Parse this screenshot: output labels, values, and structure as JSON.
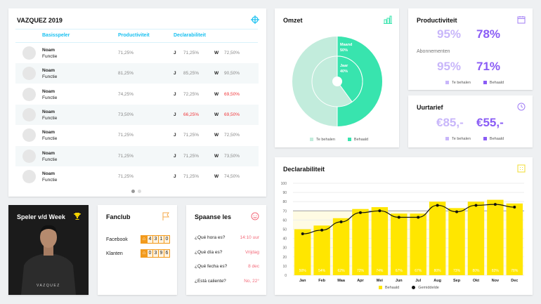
{
  "players": {
    "title": "VAZQUEZ 2019",
    "icon": "crosshair-icon",
    "headers": [
      "Basisspeler",
      "Productiviteit",
      "Declarabiliteit"
    ],
    "rows": [
      {
        "name": "Noam",
        "role": "Functie",
        "prod": "71,25%",
        "j_label": "J",
        "j": "71,25%",
        "j_red": false,
        "w_label": "W",
        "w": "72,50%",
        "w_red": false
      },
      {
        "name": "Noam",
        "role": "Functie",
        "prod": "81,25%",
        "j_label": "J",
        "j": "85,25%",
        "j_red": false,
        "w_label": "W",
        "w": "90,50%",
        "w_red": false
      },
      {
        "name": "Noam",
        "role": "Functie",
        "prod": "74,25%",
        "j_label": "J",
        "j": "72,25%",
        "j_red": false,
        "w_label": "W",
        "w": "69,50%",
        "w_red": true
      },
      {
        "name": "Noam",
        "role": "Functie",
        "prod": "73,50%",
        "j_label": "J",
        "j": "66,25%",
        "j_red": true,
        "w_label": "W",
        "w": "69,50%",
        "w_red": true
      },
      {
        "name": "Noam",
        "role": "Functie",
        "prod": "71,25%",
        "j_label": "J",
        "j": "71,25%",
        "j_red": false,
        "w_label": "W",
        "w": "72,50%",
        "w_red": false
      },
      {
        "name": "Noam",
        "role": "Functie",
        "prod": "71,25%",
        "j_label": "J",
        "j": "71,25%",
        "j_red": false,
        "w_label": "W",
        "w": "73,50%",
        "w_red": false
      },
      {
        "name": "Noam",
        "role": "Functie",
        "prod": "71,25%",
        "j_label": "J",
        "j": "71,25%",
        "j_red": false,
        "w_label": "W",
        "w": "74,50%",
        "w_red": false
      }
    ],
    "page": 1,
    "pages": 2
  },
  "omzet": {
    "title": "Omzet",
    "outer_label": "Maand",
    "outer_value": "50%",
    "outer_fraction": 0.5,
    "inner_label": "Jaar",
    "inner_value": "40%",
    "inner_fraction": 0.4,
    "legend": [
      "Te behalen",
      "Behaald"
    ],
    "colors": {
      "target": "#c2ecdc",
      "achieved": "#38e4ae"
    }
  },
  "productiviteit": {
    "title": "Productiviteit",
    "a": "95%",
    "b": "78%",
    "subtitle": "Abonnementen",
    "c": "95%",
    "d": "71%",
    "legend": [
      "Te behalen",
      "Behaald"
    ]
  },
  "uurtarief": {
    "title": "Uurtarief",
    "a": "€85,-",
    "b": "€55,-",
    "legend": [
      "Te behalen",
      "Behaald"
    ]
  },
  "chart_data": {
    "type": "bar",
    "title": "Declarabiliteit",
    "categories": [
      "Jan",
      "Feb",
      "Maa",
      "Apr",
      "Mei",
      "Jun",
      "Jul",
      "Aug",
      "Sep",
      "Okt",
      "Nov",
      "Dec"
    ],
    "series": [
      {
        "name": "Behaald",
        "type": "bar",
        "values": [
          50,
          54,
          62,
          72,
          74,
          67,
          67,
          80,
          73,
          80,
          82,
          78
        ],
        "labels": [
          "50%",
          "54%",
          "62%",
          "72%",
          "74%",
          "67%",
          "67%",
          "80%",
          "73%",
          "80%",
          "82%",
          "78%"
        ]
      },
      {
        "name": "Gemiddelde",
        "type": "line",
        "values": [
          45,
          49,
          58,
          68,
          70,
          63,
          63,
          76,
          69,
          76,
          77,
          74
        ]
      }
    ],
    "target": 70,
    "ylim": [
      0,
      100
    ],
    "yticks": [
      0,
      10,
      20,
      30,
      40,
      50,
      60,
      70,
      80,
      90,
      100
    ],
    "grid": true,
    "legend": "bottom",
    "colors": {
      "bar": "#ffe600",
      "line": "#111111",
      "target_fill": "#fffbe3"
    }
  },
  "speler": {
    "title": "Speler v/d Week",
    "shirt_text": "VAZQUEZ"
  },
  "fanclub": {
    "title": "Fanclub",
    "items": [
      {
        "label": "Facebook",
        "digits": [
          "4",
          "3",
          "1",
          "0"
        ]
      },
      {
        "label": "Klanten",
        "digits": [
          "0",
          "3",
          "9",
          "6"
        ]
      }
    ]
  },
  "spaans": {
    "title": "Spaanse les",
    "items": [
      {
        "q": "¿Qué hora es?",
        "a": "14:10 uur"
      },
      {
        "q": "¿Qué día es?",
        "a": "Vrijdag"
      },
      {
        "q": "¿Qué fecha es?",
        "a": "8 dec"
      },
      {
        "q": "¿Está caliente?",
        "a": "No, 22°"
      }
    ]
  }
}
